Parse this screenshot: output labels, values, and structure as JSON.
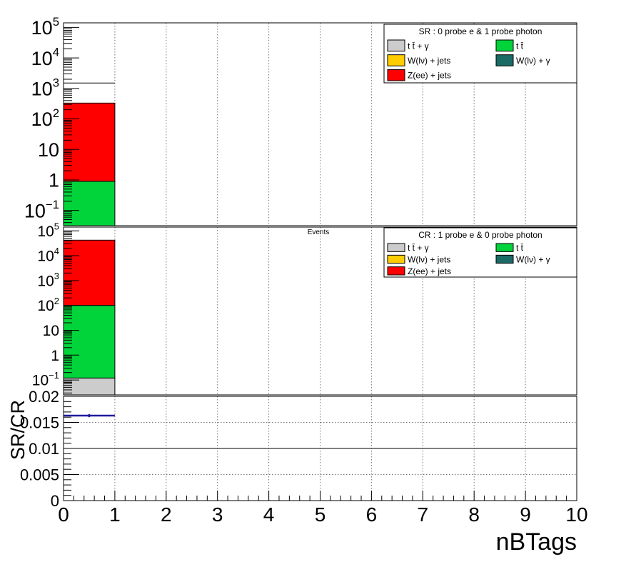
{
  "chart_data": [
    {
      "type": "bar",
      "stacked": true,
      "log_y": true,
      "grid": true,
      "xlim": [
        0,
        10
      ],
      "ylim_log10": [
        -1.5,
        5.15
      ],
      "yticks": [
        {
          "value": 0.1,
          "label": "10",
          "sup": "−1"
        },
        {
          "value": 1,
          "label": "1",
          "sup": ""
        },
        {
          "value": 10,
          "label": "10",
          "sup": ""
        },
        {
          "value": 100,
          "label": "10",
          "sup": "2"
        },
        {
          "value": 1000,
          "label": "10",
          "sup": "3"
        },
        {
          "value": 10000,
          "label": "10",
          "sup": "4"
        },
        {
          "value": 100000,
          "label": "10",
          "sup": "5"
        }
      ],
      "legend": {
        "title": "SR : 0 probe e & 1 probe photon",
        "placement": "top-right",
        "entries": [
          {
            "label": "t t̄ + γ",
            "color": "#cccccc"
          },
          {
            "label": "t t̄",
            "color": "#00d43a"
          },
          {
            "label": "W(lν) + jets",
            "color": "#ffcc00"
          },
          {
            "label": "W(lν) + γ",
            "color": "#1a6b66"
          },
          {
            "label": "Z(ee) + jets",
            "color": "#ff0000"
          }
        ]
      },
      "annotation": "",
      "bins": [
        {
          "x0": 0,
          "x1": 1,
          "stack": [
            {
              "name": "t t̄",
              "value": 0.9,
              "color": "#00d43a"
            },
            {
              "name": "Z(ee) + jets",
              "value": 330,
              "color": "#ff0000"
            }
          ],
          "data_marker": 1500
        }
      ]
    },
    {
      "type": "bar",
      "stacked": true,
      "log_y": true,
      "grid": true,
      "xlim": [
        0,
        10
      ],
      "ylim_log10": [
        -1.6,
        5.15
      ],
      "yticks": [
        {
          "value": 0.1,
          "label": "10",
          "sup": "−1"
        },
        {
          "value": 1,
          "label": "1",
          "sup": ""
        },
        {
          "value": 10,
          "label": "10",
          "sup": ""
        },
        {
          "value": 100,
          "label": "10",
          "sup": "2"
        },
        {
          "value": 1000,
          "label": "10",
          "sup": "3"
        },
        {
          "value": 10000,
          "label": "10",
          "sup": "4"
        },
        {
          "value": 100000,
          "label": "10",
          "sup": "5"
        }
      ],
      "legend": {
        "title": "CR : 1 probe e & 0 probe photon",
        "placement": "top-right",
        "entries": [
          {
            "label": "t t̄ + γ",
            "color": "#cccccc"
          },
          {
            "label": "t t̄",
            "color": "#00d43a"
          },
          {
            "label": "W(lν) + jets",
            "color": "#ffcc00"
          },
          {
            "label": "W(lν) + γ",
            "color": "#1a6b66"
          },
          {
            "label": "Z(ee) + jets",
            "color": "#ff0000"
          }
        ]
      },
      "annotation": "Events",
      "bins": [
        {
          "x0": 0,
          "x1": 1,
          "stack": [
            {
              "name": "t t̄ + γ",
              "value": 0.12,
              "color": "#cccccc"
            },
            {
              "name": "t t̄",
              "value": 100,
              "color": "#00d43a"
            },
            {
              "name": "Z(ee) + jets",
              "value": 42000,
              "color": "#ff0000"
            }
          ]
        }
      ]
    },
    {
      "type": "scatter",
      "log_y": false,
      "grid": true,
      "xlim": [
        0,
        10
      ],
      "ylim": [
        0,
        0.02
      ],
      "ylabel": "SR/CR",
      "xlabel": "nBTags",
      "yticks": [
        "0",
        "0.005",
        "0.01",
        "0.015",
        "0.02"
      ],
      "yticks_values": [
        0,
        0.005,
        0.01,
        0.015,
        0.02
      ],
      "xticks": [
        "0",
        "1",
        "2",
        "3",
        "4",
        "5",
        "6",
        "7",
        "8",
        "9",
        "10"
      ],
      "reference_line": 0.01,
      "series": [
        {
          "x": [
            0.5
          ],
          "xerr": [
            0.5
          ],
          "y": [
            0.0163
          ],
          "yerr": [
            0.0003
          ],
          "color": "#1f1a99"
        }
      ]
    }
  ]
}
